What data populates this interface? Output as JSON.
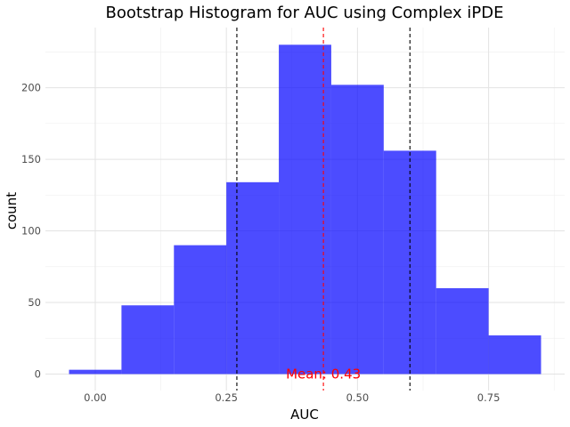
{
  "chart_data": {
    "type": "bar",
    "title": "Bootstrap Histogram for AUC using Complex iPDE",
    "xlabel": "AUC",
    "ylabel": "count",
    "xlim": [
      -0.095,
      0.895
    ],
    "ylim": [
      -11.5,
      242
    ],
    "x_ticks": [
      0.0,
      0.25,
      0.5,
      0.75
    ],
    "x_tick_labels": [
      "0.00",
      "0.25",
      "0.50",
      "0.75"
    ],
    "y_ticks": [
      0,
      50,
      100,
      150,
      200
    ],
    "y_tick_labels": [
      "0",
      "50",
      "100",
      "150",
      "200"
    ],
    "bin_width": 0.1,
    "bins": [
      {
        "center": 0.0,
        "count": 3
      },
      {
        "center": 0.1,
        "count": 48
      },
      {
        "center": 0.2,
        "count": 90
      },
      {
        "center": 0.3,
        "count": 134
      },
      {
        "center": 0.4,
        "count": 230
      },
      {
        "center": 0.5,
        "count": 202
      },
      {
        "center": 0.6,
        "count": 156
      },
      {
        "center": 0.7,
        "count": 60
      },
      {
        "center": 0.8,
        "count": 27
      }
    ],
    "bar_color": "#0000ff",
    "reference_lines": [
      {
        "x": 0.27,
        "style": "dashed",
        "color": "#000000"
      },
      {
        "x": 0.435,
        "style": "dashed",
        "color": "#ff0000"
      },
      {
        "x": 0.6,
        "style": "dashed",
        "color": "#000000"
      }
    ],
    "annotation": {
      "text": "Mean: 0.43",
      "x": 0.435,
      "y": 0,
      "color": "#ff0000"
    },
    "grid": true,
    "legend": "none"
  }
}
